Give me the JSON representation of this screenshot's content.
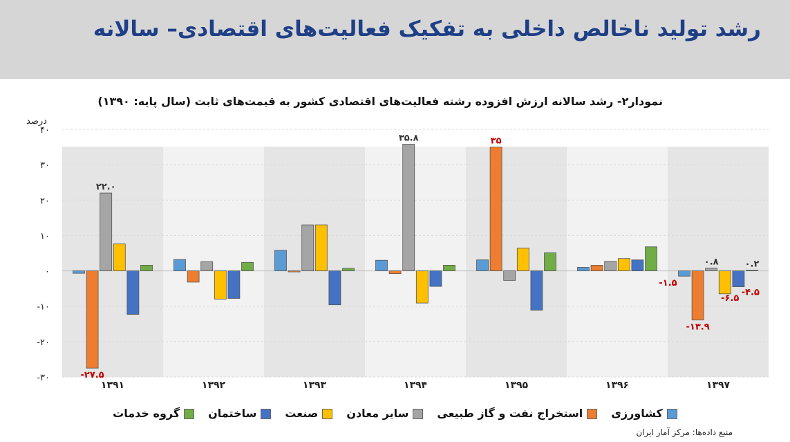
{
  "header": {
    "title": "رشد تولید ناخالص داخلی به تفکیک فعالیت‌های اقتصادی– سالانه"
  },
  "chart_data": {
    "type": "bar",
    "title": "نمودار۲- رشد سالانه ارزش افزوده رشته فعالیت‌های اقتصادی کشور به قیمت‌های ثابت (سال پایه: ۱۳۹۰)",
    "ylabel": "درصد",
    "ylim": [
      -30,
      40
    ],
    "yticks": [
      -30,
      -20,
      -10,
      0,
      10,
      20,
      30,
      40
    ],
    "ytick_labels": [
      "-۳۰",
      "-۲۰",
      "-۱۰",
      "۰",
      "۱۰",
      "۲۰",
      "۳۰",
      "۴۰"
    ],
    "categories": [
      "۱۳۹۱",
      "۱۳۹۲",
      "۱۳۹۳",
      "۱۳۹۴",
      "۱۳۹۵",
      "۱۳۹۶",
      "۱۳۹۷"
    ],
    "series": [
      {
        "name": "کشاورزی",
        "color": "#5b9bd5",
        "values": [
          -0.7,
          3.2,
          5.8,
          3.0,
          3.1,
          1.0,
          -1.5
        ]
      },
      {
        "name": "استخراج نفت و گاز طبیعی",
        "color": "#ed7d31",
        "values": [
          -27.5,
          -3.2,
          -0.3,
          -0.8,
          35,
          1.6,
          -13.9
        ]
      },
      {
        "name": "سایر معادن",
        "color": "#a5a5a5",
        "values": [
          22.0,
          2.6,
          13.0,
          35.8,
          -2.7,
          2.7,
          0.8
        ]
      },
      {
        "name": "صنعت",
        "color": "#ffc000",
        "values": [
          7.6,
          -8.0,
          13.0,
          -9.1,
          6.4,
          3.5,
          -6.5
        ]
      },
      {
        "name": "ساختمان",
        "color": "#4472c4",
        "values": [
          -12.3,
          -7.8,
          -9.6,
          -4.4,
          -11.1,
          3.1,
          -4.5
        ]
      },
      {
        "name": "گروه خدمات",
        "color": "#70ad47",
        "values": [
          1.6,
          2.4,
          0.7,
          1.6,
          5.1,
          6.8,
          0.2
        ]
      }
    ],
    "data_labels": [
      {
        "text": "۲۲.۰",
        "category_index": 0,
        "series_index": 2,
        "color": "#333333"
      },
      {
        "text": "-۲۷.۵",
        "category_index": 0,
        "series_index": 1,
        "color": "#c00000"
      },
      {
        "text": "۳۵.۸",
        "category_index": 3,
        "series_index": 2,
        "color": "#333333"
      },
      {
        "text": "۳۵",
        "category_index": 4,
        "series_index": 1,
        "color": "#c00000"
      },
      {
        "text": "۰.۸",
        "category_index": 6,
        "series_index": 2,
        "color": "#333333"
      },
      {
        "text": "۰.۲",
        "category_index": 6,
        "series_index": 5,
        "color": "#333333"
      },
      {
        "text": "-۱.۵",
        "category_index": 6,
        "series_index": 0,
        "color": "#c00000"
      },
      {
        "text": "-۱۳.۹",
        "category_index": 6,
        "series_index": 1,
        "color": "#c00000"
      },
      {
        "text": "-۶.۵",
        "category_index": 6,
        "series_index": 3,
        "color": "#c00000"
      },
      {
        "text": "-۴.۵",
        "category_index": 6,
        "series_index": 4,
        "color": "#c00000"
      }
    ],
    "grid": true,
    "legend_position": "bottom",
    "group_backgrounds": [
      "#e5e5e5",
      "#f2f2f2",
      "#e5e5e5",
      "#f2f2f2",
      "#e5e5e5",
      "#f2f2f2",
      "#e5e5e5"
    ]
  },
  "source": "منبع داده‌ها: مرکز آمار ایران"
}
